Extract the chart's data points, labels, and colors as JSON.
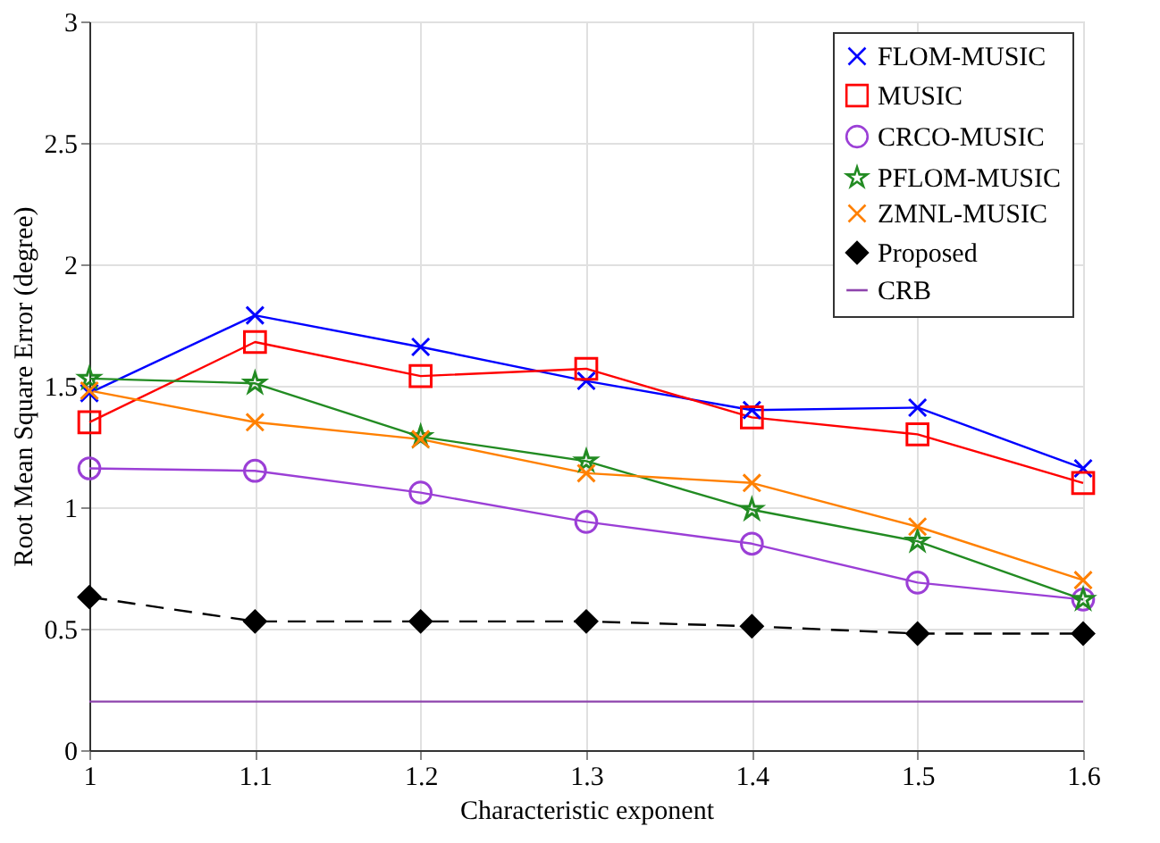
{
  "chart_data": {
    "type": "line",
    "xlabel": "Characteristic exponent",
    "ylabel": "Root Mean Square Error (degree)",
    "x": [
      1,
      1.1,
      1.2,
      1.3,
      1.4,
      1.5,
      1.6
    ],
    "xlim": [
      1,
      1.6
    ],
    "xticks": [
      1,
      1.1,
      1.2,
      1.3,
      1.4,
      1.5,
      1.6
    ],
    "ylim": [
      0,
      3
    ],
    "yticks": [
      0,
      0.5,
      1,
      1.5,
      2,
      2.5,
      3
    ],
    "grid": true,
    "legend": "top right",
    "series": [
      {
        "name": "FLOM-MUSIC",
        "color": "#0000ff",
        "marker": "cross",
        "line_style": "solid",
        "values": [
          1.47,
          1.79,
          1.66,
          1.52,
          1.4,
          1.41,
          1.16
        ]
      },
      {
        "name": "MUSIC",
        "color": "#ff0000",
        "marker": "square",
        "line_style": "solid",
        "values": [
          1.35,
          1.68,
          1.54,
          1.57,
          1.37,
          1.3,
          1.1
        ]
      },
      {
        "name": "CRCO-MUSIC",
        "color": "#9b3fd6",
        "marker": "circle",
        "line_style": "solid",
        "values": [
          1.16,
          1.15,
          1.06,
          0.94,
          0.85,
          0.69,
          0.62
        ]
      },
      {
        "name": "PFLOM-MUSIC",
        "color": "#228b22",
        "marker": "star",
        "line_style": "solid",
        "values": [
          1.53,
          1.51,
          1.29,
          1.19,
          0.99,
          0.86,
          0.62
        ]
      },
      {
        "name": "ZMNL-MUSIC",
        "color": "#ff8000",
        "marker": "cross",
        "line_style": "solid",
        "values": [
          1.48,
          1.35,
          1.28,
          1.14,
          1.1,
          0.92,
          0.7
        ]
      },
      {
        "name": "Proposed",
        "color": "#000000",
        "marker": "diamond",
        "line_style": "dashed",
        "values": [
          0.63,
          0.53,
          0.53,
          0.53,
          0.51,
          0.48,
          0.48
        ]
      },
      {
        "name": "CRB",
        "color": "#8e44ad",
        "marker": "none",
        "line_style": "solid",
        "values": [
          0.2,
          0.2,
          0.2,
          0.2,
          0.2,
          0.2,
          0.2
        ]
      }
    ]
  }
}
